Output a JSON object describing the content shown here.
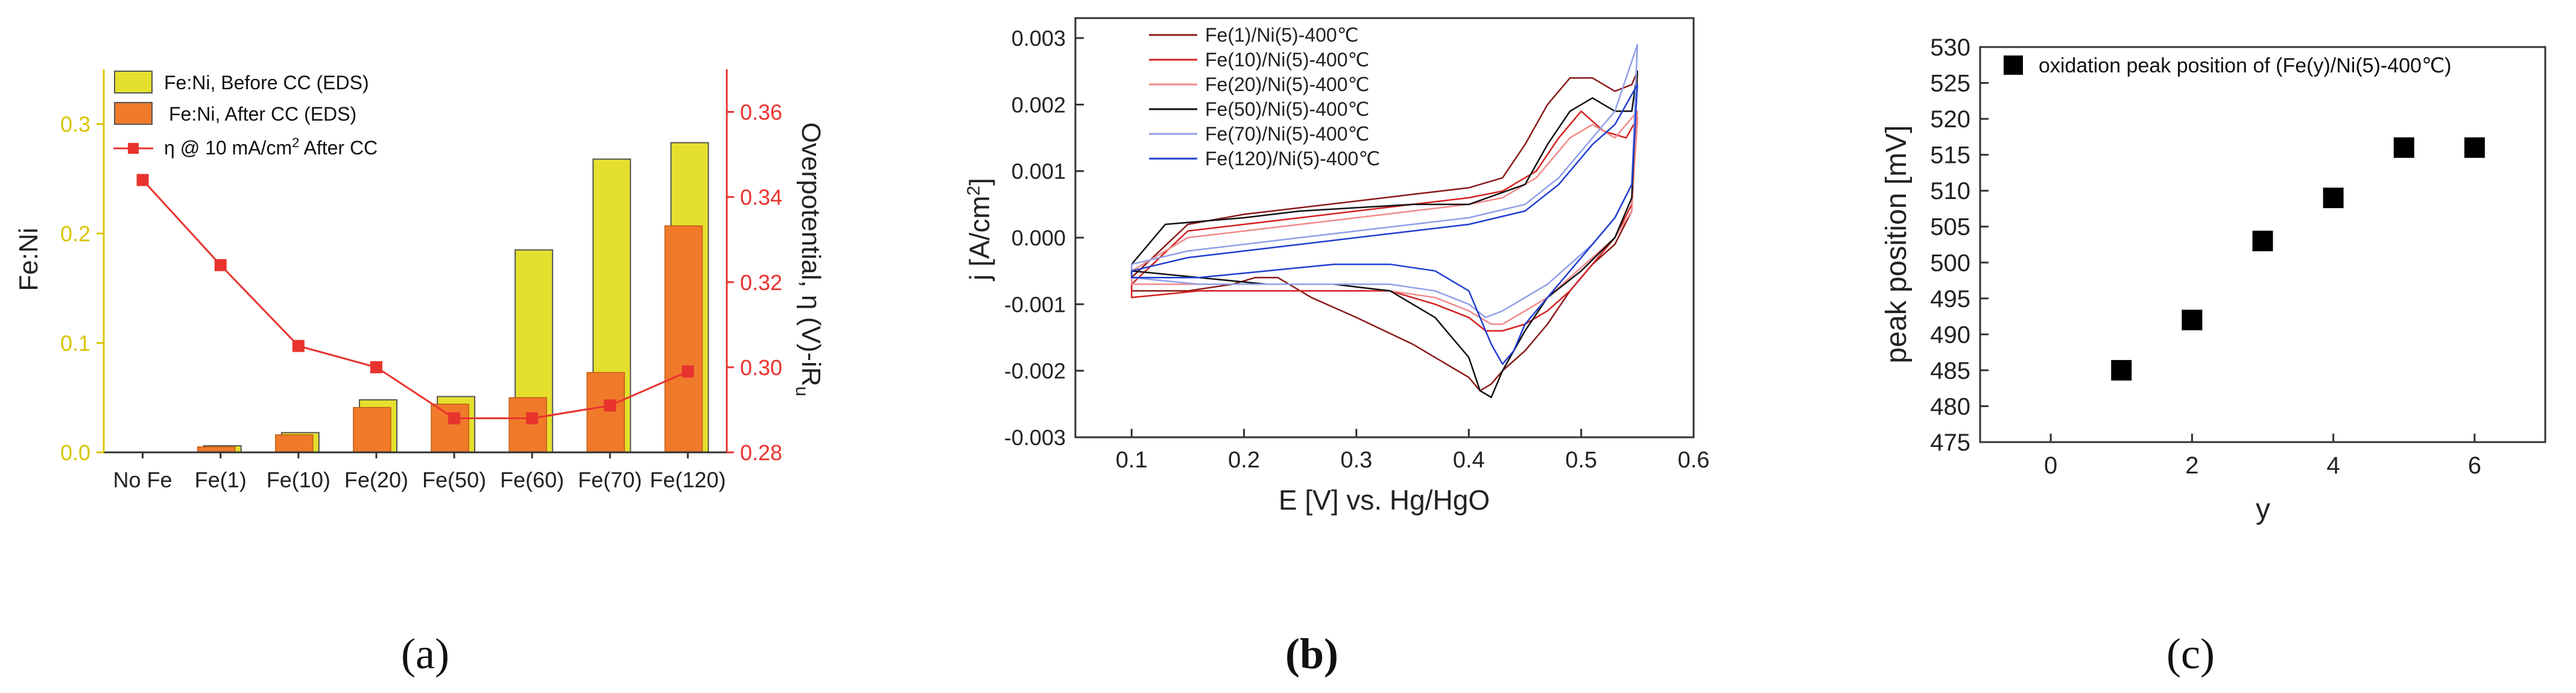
{
  "chart_data": [
    {
      "panel": "(a)",
      "type": "bar",
      "categories": [
        "No Fe",
        "Fe(1)",
        "Fe(10)",
        "Fe(20)",
        "Fe(50)",
        "Fe(60)",
        "Fe(70)",
        "Fe(120)"
      ],
      "series": [
        {
          "name": "Fe:Ni, Before CC (EDS)",
          "axis": "left",
          "kind": "bar",
          "color": "#e5e02e",
          "values": [
            0.0,
            0.006,
            0.018,
            0.048,
            0.051,
            0.185,
            0.268,
            0.283
          ]
        },
        {
          "name": "Fe:Ni, After CC (EDS)",
          "axis": "left",
          "kind": "bar",
          "color": "#f07a2a",
          "values": [
            0.0,
            0.005,
            0.016,
            0.041,
            0.044,
            0.05,
            0.073,
            0.207
          ]
        },
        {
          "name_prefix": "η @ 10 mA/cm",
          "name_sup": "2",
          "name_suffix": " After CC",
          "axis": "right",
          "kind": "line",
          "color": "#e8332e",
          "values": [
            0.344,
            0.324,
            0.305,
            0.3,
            0.288,
            0.288,
            0.291,
            0.299
          ]
        }
      ],
      "ylabel": "Fe:Ni",
      "y2label_main": "Overpotential, η (V)-iR",
      "y2label_sub": "u",
      "ylim": [
        0,
        0.35
      ],
      "yticks": [
        0.0,
        0.1,
        0.2,
        0.3
      ],
      "ytick_labels": [
        "0.0",
        "0.1",
        "0.2",
        "0.3"
      ],
      "y2lim": [
        0.28,
        0.37
      ],
      "y2ticks": [
        0.28,
        0.3,
        0.32,
        0.34,
        0.36
      ],
      "y2tick_labels": [
        "0.28",
        "0.30",
        "0.32",
        "0.34",
        "0.36"
      ],
      "left_axis_color": "#d9c500",
      "right_axis_color": "#e8332e",
      "legend_position": "top-left"
    },
    {
      "panel": "(b)",
      "type": "line",
      "xlabel": "E [V] vs. Hg/HgO",
      "ylabel_main": "j [A/cm",
      "ylabel_sup": "2",
      "ylabel_end": "]",
      "xlim": [
        0.05,
        0.6
      ],
      "ylim": [
        -0.003,
        0.0033
      ],
      "xticks": [
        0.1,
        0.2,
        0.3,
        0.4,
        0.5,
        0.6
      ],
      "xtick_labels": [
        "0.1",
        "0.2",
        "0.3",
        "0.4",
        "0.5",
        "0.6"
      ],
      "yticks": [
        -0.003,
        -0.002,
        -0.001,
        0.0,
        0.001,
        0.002,
        0.003
      ],
      "ytick_labels": [
        "-0.003",
        "-0.002",
        "-0.001",
        "0.000",
        "0.001",
        "0.002",
        "0.003"
      ],
      "legend_position": "top-left",
      "series": [
        {
          "name": "Fe(1)/Ni(5)-400℃",
          "color": "#8b1a1a",
          "x": [
            0.1,
            0.15,
            0.2,
            0.25,
            0.3,
            0.35,
            0.4,
            0.43,
            0.45,
            0.47,
            0.49,
            0.51,
            0.53,
            0.545,
            0.55,
            0.545,
            0.53,
            0.51,
            0.49,
            0.47,
            0.45,
            0.43,
            0.42,
            0.41,
            0.4,
            0.38,
            0.35,
            0.3,
            0.26,
            0.23,
            0.21,
            0.19,
            0.15,
            0.1
          ],
          "y": [
            -0.0006,
            0.0002,
            0.00035,
            0.00045,
            0.00055,
            0.00065,
            0.00075,
            0.0009,
            0.0014,
            0.002,
            0.0024,
            0.0024,
            0.0022,
            0.0023,
            0.0025,
            0.0004,
            -0.0001,
            -0.0004,
            -0.0008,
            -0.0013,
            -0.0017,
            -0.002,
            -0.0022,
            -0.0023,
            -0.0021,
            -0.0019,
            -0.0016,
            -0.0012,
            -0.0009,
            -0.0006,
            -0.0006,
            -0.0007,
            -0.0008,
            -0.0008
          ]
        },
        {
          "name": "Fe(10)/Ni(5)-400℃",
          "color": "#d42020",
          "x": [
            0.1,
            0.15,
            0.2,
            0.25,
            0.3,
            0.35,
            0.4,
            0.43,
            0.46,
            0.48,
            0.5,
            0.52,
            0.54,
            0.55,
            0.545,
            0.53,
            0.51,
            0.49,
            0.47,
            0.45,
            0.43,
            0.415,
            0.4,
            0.37,
            0.33,
            0.28,
            0.22,
            0.16,
            0.1
          ],
          "y": [
            -0.0007,
            0.0001,
            0.0002,
            0.0003,
            0.0004,
            0.0005,
            0.0006,
            0.0007,
            0.001,
            0.0015,
            0.0019,
            0.0016,
            0.0015,
            0.0018,
            0.0005,
            0.0,
            -0.0004,
            -0.0008,
            -0.0011,
            -0.0013,
            -0.0014,
            -0.0014,
            -0.0012,
            -0.001,
            -0.0008,
            -0.0008,
            -0.0008,
            -0.0008,
            -0.0009
          ]
        },
        {
          "name": "Fe(20)/Ni(5)-400℃",
          "color": "#f08a8a",
          "x": [
            0.1,
            0.15,
            0.2,
            0.25,
            0.3,
            0.35,
            0.4,
            0.43,
            0.46,
            0.49,
            0.51,
            0.53,
            0.55,
            0.545,
            0.53,
            0.51,
            0.49,
            0.47,
            0.45,
            0.43,
            0.42,
            0.4,
            0.37,
            0.33,
            0.28,
            0.22,
            0.16,
            0.1
          ],
          "y": [
            -0.0005,
            0.0,
            0.0001,
            0.0002,
            0.0003,
            0.0004,
            0.0005,
            0.0006,
            0.0009,
            0.0015,
            0.0017,
            0.0015,
            0.0019,
            0.0004,
            0.0,
            -0.0003,
            -0.0006,
            -0.0009,
            -0.0011,
            -0.0013,
            -0.0013,
            -0.0011,
            -0.0009,
            -0.0008,
            -0.0007,
            -0.0007,
            -0.0007,
            -0.0007
          ]
        },
        {
          "name": "Fe(50)/Ni(5)-400℃",
          "color": "#111111",
          "x": [
            0.1,
            0.13,
            0.2,
            0.25,
            0.3,
            0.35,
            0.4,
            0.45,
            0.47,
            0.49,
            0.51,
            0.53,
            0.545,
            0.55,
            0.545,
            0.53,
            0.5,
            0.47,
            0.45,
            0.43,
            0.42,
            0.41,
            0.4,
            0.37,
            0.33,
            0.28,
            0.22,
            0.16,
            0.1
          ],
          "y": [
            -0.0004,
            0.0002,
            0.0003,
            0.0004,
            0.00045,
            0.0005,
            0.0005,
            0.0008,
            0.0014,
            0.0019,
            0.0021,
            0.0019,
            0.0019,
            0.0025,
            0.0006,
            0.0,
            -0.0005,
            -0.0009,
            -0.0014,
            -0.002,
            -0.0024,
            -0.0023,
            -0.0018,
            -0.0012,
            -0.0008,
            -0.0007,
            -0.0007,
            -0.0006,
            -0.0005
          ]
        },
        {
          "name": "Fe(70)/Ni(5)-400℃",
          "color": "#8f9fe8",
          "x": [
            0.1,
            0.15,
            0.2,
            0.25,
            0.3,
            0.35,
            0.4,
            0.45,
            0.48,
            0.51,
            0.53,
            0.55,
            0.545,
            0.53,
            0.51,
            0.49,
            0.47,
            0.45,
            0.43,
            0.415,
            0.4,
            0.37,
            0.33,
            0.28,
            0.22,
            0.16,
            0.1
          ],
          "y": [
            -0.0004,
            -0.0002,
            -0.0001,
            0.0,
            0.0001,
            0.0002,
            0.0003,
            0.0005,
            0.0009,
            0.0015,
            0.0019,
            0.0029,
            0.0008,
            0.0003,
            -0.0001,
            -0.0004,
            -0.0007,
            -0.0009,
            -0.0011,
            -0.0012,
            -0.001,
            -0.0008,
            -0.0007,
            -0.0007,
            -0.0007,
            -0.0007,
            -0.0006
          ]
        },
        {
          "name": "Fe(120)/Ni(5)-400℃",
          "color": "#1f3fd0",
          "x": [
            0.1,
            0.15,
            0.2,
            0.25,
            0.3,
            0.35,
            0.4,
            0.45,
            0.48,
            0.51,
            0.53,
            0.55,
            0.545,
            0.53,
            0.51,
            0.49,
            0.47,
            0.45,
            0.44,
            0.43,
            0.42,
            0.4,
            0.37,
            0.33,
            0.28,
            0.22,
            0.16,
            0.1
          ],
          "y": [
            -0.0005,
            -0.0003,
            -0.0002,
            -0.0001,
            0.0,
            0.0001,
            0.0002,
            0.0004,
            0.0008,
            0.0014,
            0.0017,
            0.0023,
            0.0008,
            0.0003,
            -0.0001,
            -0.0005,
            -0.0009,
            -0.0013,
            -0.0017,
            -0.0019,
            -0.0016,
            -0.0008,
            -0.0005,
            -0.0004,
            -0.0004,
            -0.0005,
            -0.0006,
            -0.0006
          ]
        }
      ]
    },
    {
      "panel": "(c)",
      "type": "scatter",
      "xlabel": "y",
      "ylabel": "peak position [mV]",
      "xlim": [
        -1,
        7
      ],
      "ylim": [
        475,
        530
      ],
      "xticks": [
        0,
        2,
        4,
        6
      ],
      "xtick_labels": [
        "0",
        "2",
        "4",
        "6"
      ],
      "yticks": [
        475,
        480,
        485,
        490,
        495,
        500,
        505,
        510,
        515,
        520,
        525,
        530
      ],
      "ytick_labels": [
        "475",
        "480",
        "485",
        "490",
        "495",
        "500",
        "505",
        "510",
        "515",
        "520",
        "525",
        "530"
      ],
      "legend_position": "top",
      "series": [
        {
          "name": "oxidation peak position of (Fe(y)/Ni(5)-400℃)",
          "color": "#000000",
          "x": [
            1,
            2,
            3,
            4,
            5,
            6
          ],
          "y": [
            485,
            492,
            503,
            509,
            516,
            516
          ]
        }
      ]
    }
  ],
  "panel_labels": {
    "a": "(a)",
    "b": "(b)",
    "c": "(c)"
  }
}
